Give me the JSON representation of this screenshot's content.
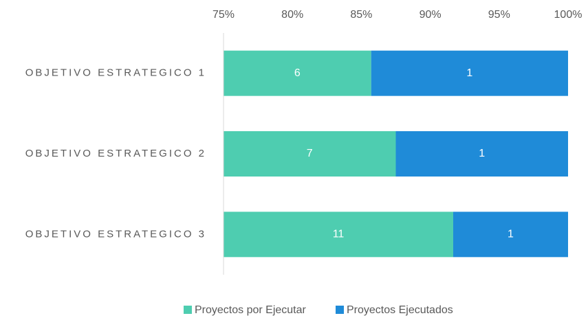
{
  "chart_data": {
    "type": "bar",
    "orientation": "horizontal",
    "stacked": "percent",
    "categories": [
      "OBJETIVO ESTRATEGICO 1",
      "OBJETIVO ESTRATEGICO 2",
      "OBJETIVO ESTRATEGICO 3"
    ],
    "series": [
      {
        "name": "Proyectos por Ejecutar",
        "color": "#4ecdb0",
        "values": [
          6,
          7,
          11
        ]
      },
      {
        "name": "Proyectos Ejecutados",
        "color": "#1f8bd8",
        "values": [
          1,
          1,
          1
        ]
      }
    ],
    "xlim": [
      75,
      100
    ],
    "xticks": [
      {
        "value": 75,
        "label": "75%"
      },
      {
        "value": 80,
        "label": "80%"
      },
      {
        "value": 85,
        "label": "85%"
      },
      {
        "value": 90,
        "label": "90%"
      },
      {
        "value": 95,
        "label": "95%"
      },
      {
        "value": 100,
        "label": "100%"
      }
    ],
    "legend": "bottom"
  }
}
